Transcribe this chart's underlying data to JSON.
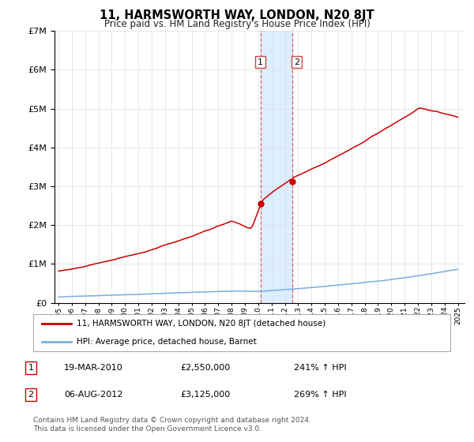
{
  "title": "11, HARMSWORTH WAY, LONDON, N20 8JT",
  "subtitle": "Price paid vs. HM Land Registry's House Price Index (HPI)",
  "hpi_label": "HPI: Average price, detached house, Barnet",
  "property_label": "11, HARMSWORTH WAY, LONDON, N20 8JT (detached house)",
  "transaction1_date": "19-MAR-2010",
  "transaction1_price": "£2,550,000",
  "transaction1_hpi": "241% ↑ HPI",
  "transaction2_date": "06-AUG-2012",
  "transaction2_price": "£3,125,000",
  "transaction2_hpi": "269% ↑ HPI",
  "footer": "Contains HM Land Registry data © Crown copyright and database right 2024.\nThis data is licensed under the Open Government Licence v3.0.",
  "property_color": "#cc0000",
  "hpi_color": "#7aade0",
  "highlight_color": "#ddeeff",
  "highlight_border_color": "#cc6666",
  "t1_x": 2010.21,
  "t2_x": 2012.59,
  "t1_y": 2550000,
  "t2_y": 3125000,
  "ylim": [
    0,
    7000000
  ],
  "xlim_left": 1994.7,
  "xlim_right": 2025.5
}
